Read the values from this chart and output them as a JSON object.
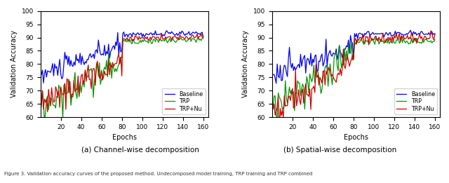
{
  "title_a": "(a) Channel-wise decomposition",
  "title_b": "(b) Spatial-wise decomposition",
  "caption": "Figure 3. Validation accuracy curves of the proposed method. Undecomposed model training, TRP training and TRP combined",
  "xlabel": "Epochs",
  "ylabel": "Validation Accuracy",
  "ylim": [
    60,
    100
  ],
  "xlim": [
    0,
    165
  ],
  "xticks": [
    20,
    40,
    60,
    80,
    100,
    120,
    140,
    160
  ],
  "yticks": [
    60,
    65,
    70,
    75,
    80,
    85,
    90,
    95,
    100
  ],
  "colors": {
    "baseline": "#0000ee",
    "trp": "#009900",
    "trp_nu": "#cc0000"
  },
  "legend_labels": [
    "Baseline",
    "TRP",
    "TRP+Nu"
  ],
  "linewidth": 0.9
}
